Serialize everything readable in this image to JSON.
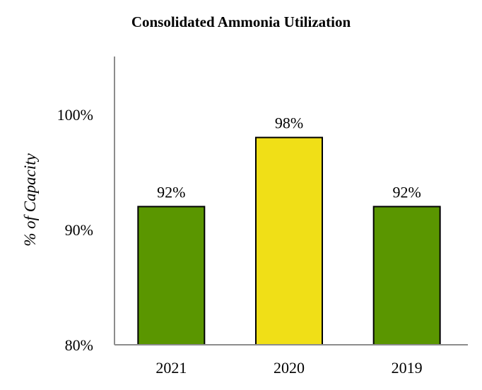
{
  "chart_data": {
    "type": "bar",
    "title": "Consolidated Ammonia Utilization",
    "ylabel": "% of Capacity",
    "xlabel": "",
    "categories": [
      "2021",
      "2020",
      "2019"
    ],
    "values": [
      92,
      98,
      92
    ],
    "data_labels": [
      "92%",
      "98%",
      "92%"
    ],
    "bar_colors": [
      "#5a9600",
      "#f0df17",
      "#5a9600"
    ],
    "ylim": [
      80,
      105
    ],
    "yticks": [
      80,
      90,
      100
    ],
    "ytick_labels": [
      "80%",
      "90%",
      "100%"
    ],
    "grid": false,
    "legend": "none"
  }
}
